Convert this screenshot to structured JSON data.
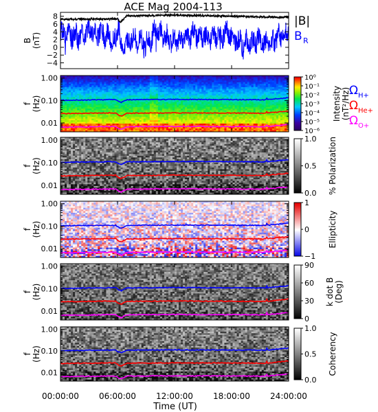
{
  "title": "ACE Mag 2004-113",
  "colors": {
    "b_total": "#000000",
    "b_radial": "#0000ff",
    "omega_h": "#0000ff",
    "omega_he": "#ff0000",
    "omega_o": "#ff00ff"
  },
  "chart_data": [
    {
      "id": "b-field",
      "type": "line",
      "xlabel": "",
      "ylabel": "B (nT)",
      "ylim": [
        -5.5,
        9
      ],
      "yticks": [
        -4,
        -2,
        0,
        2,
        4,
        6,
        8
      ],
      "series": [
        {
          "name": "|B|",
          "trend": [
            [
              0,
              7.2
            ],
            [
              6,
              7.3
            ],
            [
              6.3,
              6.4
            ],
            [
              7,
              8.1
            ],
            [
              12,
              8.3
            ],
            [
              18,
              8.0
            ],
            [
              24,
              7.7
            ]
          ]
        },
        {
          "name": "B",
          "subscript": "R",
          "trend": [
            [
              0,
              3.5
            ],
            [
              1,
              3.2
            ],
            [
              2.2,
              3.0
            ],
            [
              3,
              4.5
            ],
            [
              4.5,
              3.5
            ],
            [
              5.8,
              2.0
            ],
            [
              6.1,
              7.0
            ],
            [
              6.4,
              -1.0
            ],
            [
              7.5,
              3.0
            ],
            [
              9,
              0.5
            ],
            [
              10,
              4.0
            ],
            [
              12,
              1.5
            ],
            [
              14,
              3.5
            ],
            [
              16,
              2.5
            ],
            [
              17.5,
              4.0
            ],
            [
              19,
              1.0
            ],
            [
              20.5,
              2.0
            ],
            [
              22,
              0.5
            ],
            [
              23,
              3.0
            ],
            [
              24,
              4.0
            ]
          ]
        }
      ]
    },
    {
      "id": "intensity",
      "type": "heatmap",
      "ylabel": "f (Hz)",
      "ylog": true,
      "ylim": [
        0.004,
        1.3
      ],
      "yticks": [
        "1.00",
        "0.10",
        "0.01"
      ],
      "colorbar": {
        "label": "Intensity (nT²/Hz)",
        "ticks": [
          "10⁰",
          "10⁻¹",
          "10⁻²",
          "10⁻³",
          "10⁻⁴",
          "10⁻⁵",
          "10⁻⁶"
        ],
        "range": [
          1e-06,
          1
        ]
      }
    },
    {
      "id": "polarization",
      "type": "heatmap",
      "ylabel": "f (Hz)",
      "ylog": true,
      "ylim": [
        0.004,
        1.3
      ],
      "yticks": [
        "1.00",
        "0.10",
        "0.01"
      ],
      "colorbar": {
        "label": "% Polarization",
        "ticks": [
          "1.0",
          "0.5",
          "0.0"
        ],
        "range": [
          0,
          1
        ]
      }
    },
    {
      "id": "ellipticity",
      "type": "heatmap",
      "ylabel": "f (Hz)",
      "ylog": true,
      "ylim": [
        0.004,
        1.3
      ],
      "yticks": [
        "1.00",
        "0.10",
        "0.01"
      ],
      "colorbar": {
        "label": "Ellipticity",
        "ticks": [
          "1",
          "0",
          "−1"
        ],
        "range": [
          -1,
          1
        ]
      }
    },
    {
      "id": "k-dot-b",
      "type": "heatmap",
      "ylabel": "f (Hz)",
      "ylog": true,
      "ylim": [
        0.004,
        1.3
      ],
      "yticks": [
        "1.00",
        "0.10",
        "0.01"
      ],
      "colorbar": {
        "label": "k dot B (Deg)",
        "ticks": [
          "90",
          "60",
          "30",
          "0"
        ],
        "range": [
          0,
          90
        ]
      }
    },
    {
      "id": "coherency",
      "type": "heatmap",
      "ylabel": "f (Hz)",
      "ylog": true,
      "ylim": [
        0.004,
        1.3
      ],
      "yticks": [
        "1.00",
        "0.10",
        "0.01"
      ],
      "colorbar": {
        "label": "Coherency",
        "ticks": [
          "1.0",
          "0.5",
          "0.0"
        ],
        "range": [
          0,
          1
        ]
      }
    }
  ],
  "gyrofrequency_lines": [
    {
      "name": "Ω",
      "subscript": "H+",
      "color": "#0000ff",
      "hz": [
        [
          0,
          0.103
        ],
        [
          5.8,
          0.11
        ],
        [
          6.1,
          0.09
        ],
        [
          6.4,
          0.082
        ],
        [
          7,
          0.108
        ],
        [
          12,
          0.112
        ],
        [
          18,
          0.11
        ],
        [
          21.6,
          0.108
        ],
        [
          21.7,
          0.13
        ],
        [
          21.8,
          0.11
        ],
        [
          24,
          0.135
        ]
      ]
    },
    {
      "name": "Ω",
      "subscript": "He+",
      "color": "#ff0000",
      "hz": [
        [
          0,
          0.026
        ],
        [
          5.8,
          0.028
        ],
        [
          6.1,
          0.022
        ],
        [
          6.4,
          0.02
        ],
        [
          7,
          0.027
        ],
        [
          12,
          0.028
        ],
        [
          18,
          0.0275
        ],
        [
          21.6,
          0.027
        ],
        [
          21.7,
          0.033
        ],
        [
          21.8,
          0.0275
        ],
        [
          24,
          0.034
        ]
      ]
    },
    {
      "name": "Ω",
      "subscript": "O+",
      "color": "#ff00ff",
      "hz": [
        [
          0,
          0.0065
        ],
        [
          5.8,
          0.0069
        ],
        [
          6.1,
          0.0056
        ],
        [
          6.4,
          0.0051
        ],
        [
          7,
          0.0068
        ],
        [
          12,
          0.007
        ],
        [
          18,
          0.0069
        ],
        [
          21.6,
          0.0068
        ],
        [
          21.7,
          0.0082
        ],
        [
          21.8,
          0.0069
        ],
        [
          24,
          0.0085
        ]
      ]
    }
  ],
  "time_axis": {
    "label": "Time (UT)",
    "ticks": [
      "00:00:00",
      "06:00:00",
      "12:00:00",
      "18:00:00",
      "24:00:00"
    ],
    "range_hours": [
      0,
      24
    ]
  }
}
